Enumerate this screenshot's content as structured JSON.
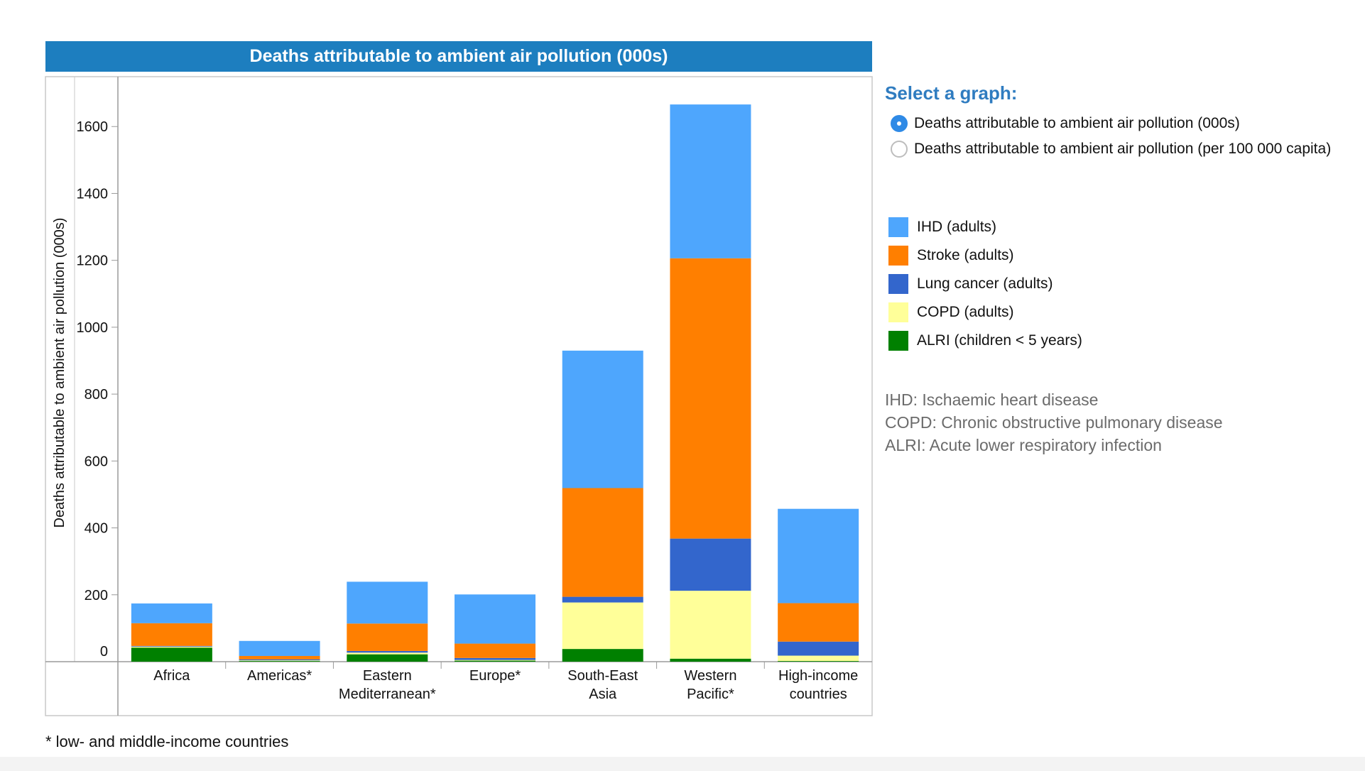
{
  "chart_title": "Deaths attributable to ambient air pollution (000s)",
  "panel": {
    "heading": "Select a graph:",
    "options": [
      {
        "label": "Deaths attributable to ambient air pollution (000s)",
        "selected": true
      },
      {
        "label": "Deaths attributable to ambient air pollution (per 100 000 capita)",
        "selected": false
      }
    ]
  },
  "legend": [
    {
      "label": "IHD (adults)",
      "color": "#4ea6fd"
    },
    {
      "label": "Stroke (adults)",
      "color": "#ff7f00"
    },
    {
      "label": "Lung cancer (adults)",
      "color": "#3366cc"
    },
    {
      "label": "COPD (adults)",
      "color": "#ffff99"
    },
    {
      "label": "ALRI (children < 5 years)",
      "color": "#008000"
    }
  ],
  "glossary": [
    "IHD: Ischaemic heart disease",
    "COPD: Chronic obstructive pulmonary disease",
    "ALRI: Acute lower respiratory infection"
  ],
  "footnote": "* low- and middle-income countries",
  "chart_data": {
    "type": "bar",
    "stacked": true,
    "title": "Deaths attributable to ambient air pollution (000s)",
    "ylabel": "Deaths attributable to ambient air pollution (000s)",
    "xlabel": "",
    "ylim": [
      0,
      1700
    ],
    "yticks": [
      0,
      200,
      400,
      600,
      800,
      1000,
      1200,
      1400,
      1600
    ],
    "categories": [
      [
        "Africa"
      ],
      [
        "Americas*"
      ],
      [
        "Eastern",
        "Mediterranean*"
      ],
      [
        "Europe*"
      ],
      [
        "South-East",
        "Asia"
      ],
      [
        "Western",
        "Pacific*"
      ],
      [
        "High-income",
        "countries"
      ]
    ],
    "series": [
      {
        "name": "ALRI (children < 5 years)",
        "color": "#008000",
        "values": [
          42,
          2,
          22,
          3,
          38,
          9,
          2
        ]
      },
      {
        "name": "COPD (adults)",
        "color": "#ffff99",
        "values": [
          3,
          2,
          5,
          2,
          139,
          203,
          16
        ]
      },
      {
        "name": "Lung cancer (adults)",
        "color": "#3366cc",
        "values": [
          2,
          3,
          5,
          6,
          17,
          156,
          42
        ]
      },
      {
        "name": "Stroke (adults)",
        "color": "#ff7f00",
        "values": [
          68,
          10,
          82,
          43,
          325,
          838,
          115
        ]
      },
      {
        "name": "IHD (adults)",
        "color": "#4ea6fd",
        "values": [
          59,
          45,
          125,
          147,
          411,
          460,
          282
        ]
      }
    ]
  }
}
